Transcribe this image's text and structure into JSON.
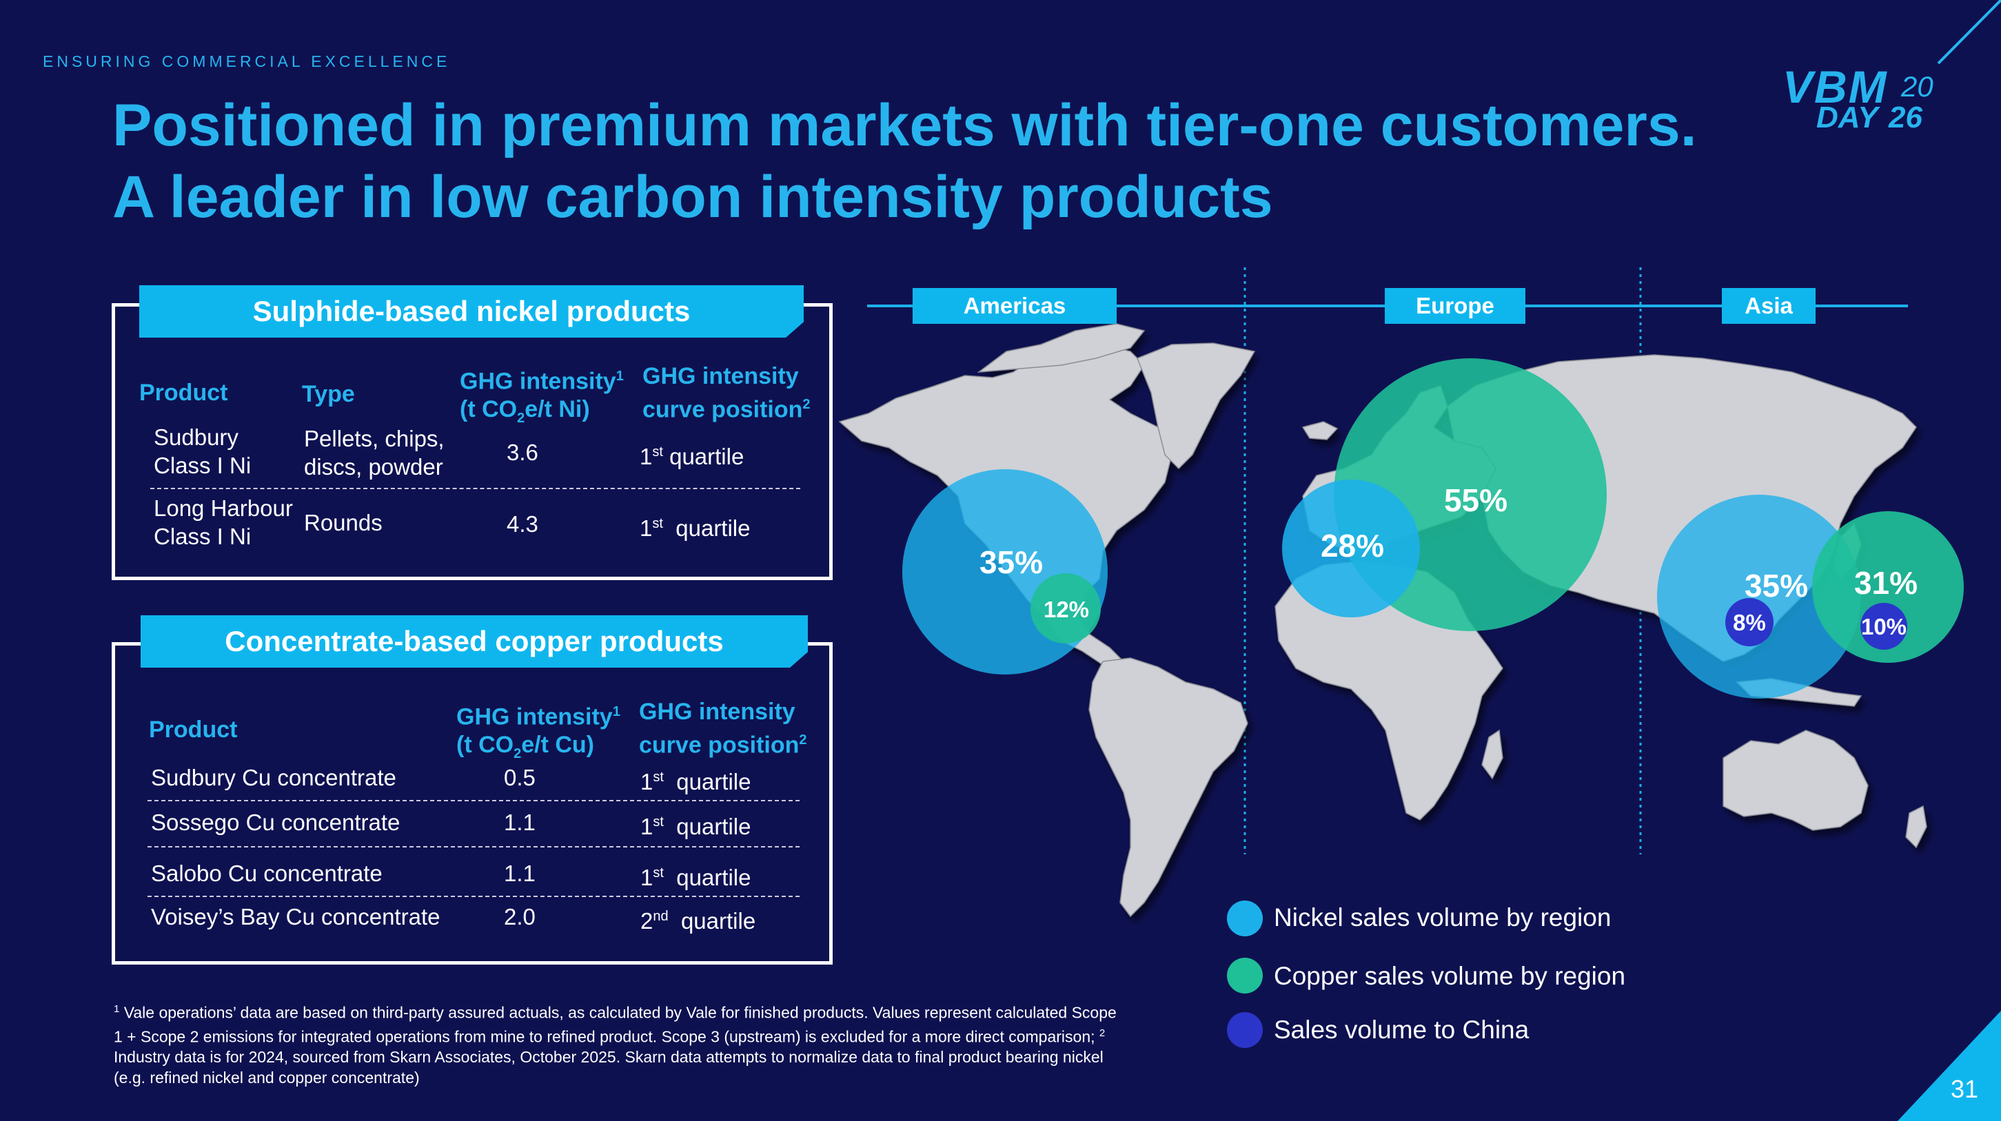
{
  "header": {
    "kicker": "ENSURING COMMERCIAL EXCELLENCE",
    "title_line1": "Positioned in premium markets with tier-one customers.",
    "title_line2": "A leader in low carbon intensity products"
  },
  "logo": {
    "word": "VBM",
    "day": "DAY",
    "num_top": "20",
    "num_bottom": "26"
  },
  "nickel_table": {
    "banner": "Sulphide-based nickel products",
    "col_product": "Product",
    "col_type": "Type",
    "col_ghg_l1": "GHG intensity",
    "col_ghg_sup": "1",
    "col_ghg_l2_pre": "(t CO",
    "col_ghg_l2_sub": "2",
    "col_ghg_l2_post": "e/t Ni)",
    "col_curve_l1": "GHG intensity",
    "col_curve_l2": "curve position",
    "col_curve_sup": "2",
    "rows": [
      {
        "product_l1": "Sudbury",
        "product_l2": "Class I Ni",
        "type_l1": "Pellets, chips,",
        "type_l2": "discs, powder",
        "ghg": "3.6",
        "pos_num": "1",
        "pos_sup": "st",
        "pos_word": " quartile"
      },
      {
        "product_l1": "Long Harbour",
        "product_l2": "Class I Ni",
        "type_l1": "Rounds",
        "type_l2": "",
        "ghg": "4.3",
        "pos_num": "1",
        "pos_sup": "st",
        "pos_word": "  quartile"
      }
    ]
  },
  "copper_table": {
    "banner": "Concentrate-based copper products",
    "col_product": "Product",
    "col_ghg_l1": "GHG intensity",
    "col_ghg_sup": "1",
    "col_ghg_l2_pre": "(t CO",
    "col_ghg_l2_sub": "2",
    "col_ghg_l2_post": "e/t Cu)",
    "col_curve_l1": "GHG intensity",
    "col_curve_l2": "curve position",
    "col_curve_sup": "2",
    "rows": [
      {
        "product": "Sudbury Cu concentrate",
        "ghg": "0.5",
        "pos_num": "1",
        "pos_sup": "st",
        "pos_word": "  quartile"
      },
      {
        "product": "Sossego Cu concentrate",
        "ghg": "1.1",
        "pos_num": "1",
        "pos_sup": "st",
        "pos_word": "  quartile"
      },
      {
        "product": "Salobo Cu concentrate",
        "ghg": "1.1",
        "pos_num": "1",
        "pos_sup": "st",
        "pos_word": "  quartile"
      },
      {
        "product": "Voisey’s Bay Cu concentrate",
        "ghg": "2.0",
        "pos_num": "2",
        "pos_sup": "nd",
        "pos_word": "  quartile"
      }
    ]
  },
  "footnote": {
    "sup1": "1",
    "text1": " Vale operations’ data are based on third-party assured actuals, as calculated by Vale for finished products. Values represent calculated Scope 1 + Scope 2 emissions for integrated operations from mine to refined product. Scope 3 (upstream) is excluded for a more direct comparison; ",
    "sup2": "2",
    "text2": " Industry data is for 2024, sourced from Skarn Associates, October 2025. Skarn data attempts to normalize data to final product bearing nickel (e.g. refined nickel and copper concentrate)"
  },
  "map": {
    "regions": [
      "Americas",
      "Europe",
      "Asia"
    ],
    "americas": {
      "nickel": "35%",
      "china": "12%"
    },
    "europe": {
      "nickel": "28%",
      "copper": "55%"
    },
    "asia": {
      "nickel": "35%",
      "nickel_china": "8%",
      "copper": "31%",
      "copper_china": "10%"
    },
    "colors": {
      "nickel": "#1cb0ea",
      "copper": "#1fbf98",
      "china": "#2b35c9",
      "land": "#cfd1d6"
    }
  },
  "legend": {
    "nickel": "Nickel sales volume by region",
    "copper": "Copper sales volume by region",
    "china": "Sales volume to China"
  },
  "page_number": "31"
}
